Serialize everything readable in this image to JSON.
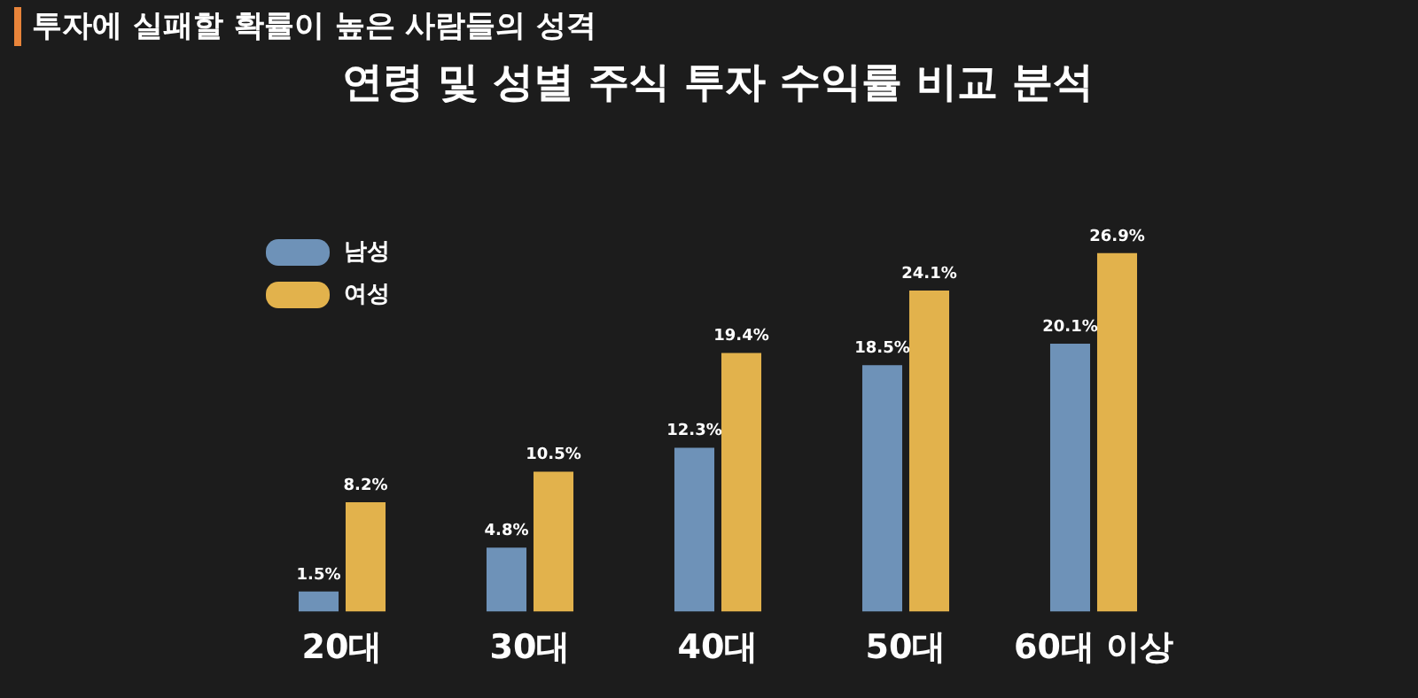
{
  "chart_data": {
    "type": "bar",
    "title": "연령 및 성별 주식 투자 수익률 비교 분석",
    "subtitle": "투자에 실패할 확률이 높은 사람들의 성격",
    "categories": [
      "20대",
      "30대",
      "40대",
      "50대",
      "60대 이상"
    ],
    "series": [
      {
        "name": "남성",
        "color": "#6e92b8",
        "values": [
          1.5,
          4.8,
          12.3,
          18.5,
          20.1
        ],
        "value_labels": [
          "1.5%",
          "4.8%",
          "12.3%",
          "18.5%",
          "20.1%"
        ]
      },
      {
        "name": "여성",
        "color": "#e2b24c",
        "values": [
          8.2,
          10.5,
          19.4,
          24.1,
          26.9
        ],
        "value_labels": [
          "8.2%",
          "10.5%",
          "19.4%",
          "24.1%",
          "26.9%"
        ]
      }
    ],
    "legend": "top left",
    "tick_labels": "x"
  }
}
